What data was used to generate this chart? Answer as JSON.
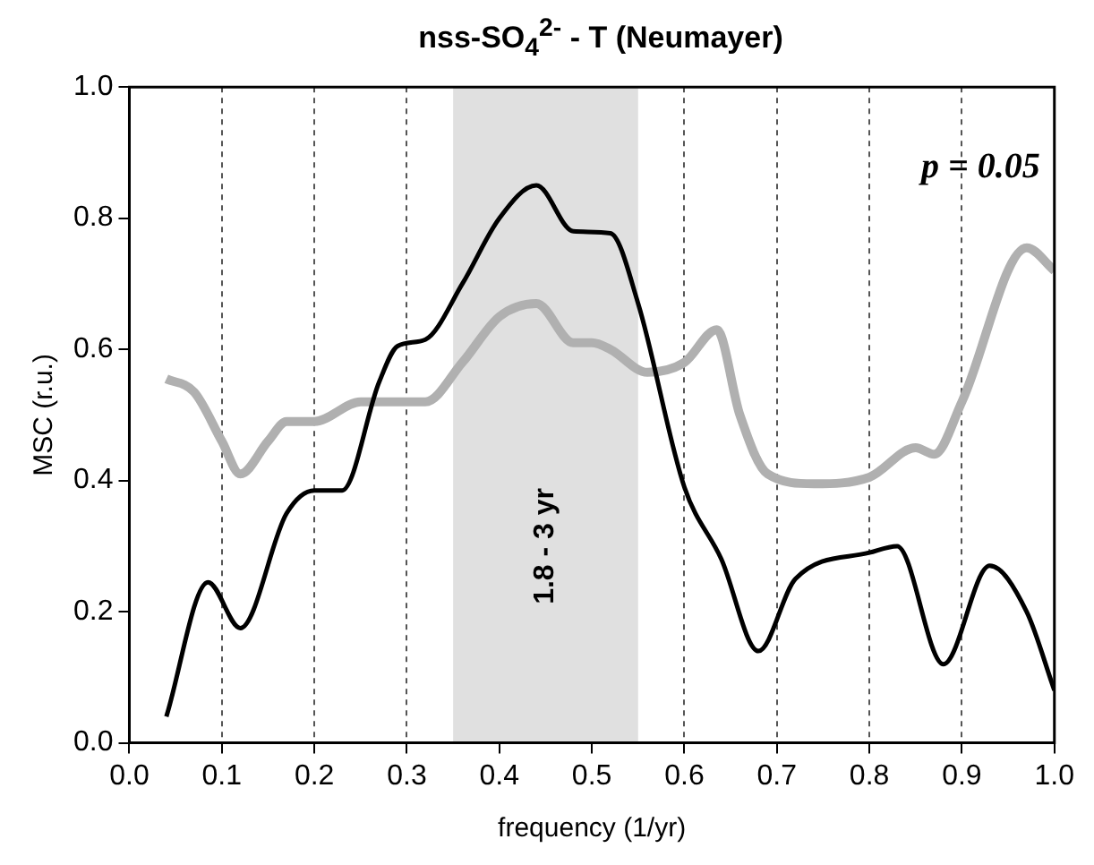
{
  "chart_data": {
    "type": "line",
    "title": "nss-SO$_{4}$$^{2-}$ - T (Neumayer)",
    "xlabel": "frequency (1/yr)",
    "ylabel": "MSC (r.u.)",
    "series": [
      {
        "color": "#000000",
        "x": [
          0.04,
          0.085,
          0.12,
          0.17,
          0.2,
          0.23,
          0.27,
          0.29,
          0.32,
          0.36,
          0.4,
          0.44,
          0.48,
          0.52,
          0.55,
          0.6,
          0.64,
          0.68,
          0.72,
          0.8,
          0.83,
          0.88,
          0.93,
          0.97,
          1.0
        ],
        "values": [
          0.04,
          0.245,
          0.175,
          0.35,
          0.385,
          0.385,
          0.55,
          0.605,
          0.615,
          0.7,
          0.8,
          0.85,
          0.78,
          0.777,
          0.67,
          0.39,
          0.28,
          0.14,
          0.25,
          0.29,
          0.3,
          0.12,
          0.27,
          0.2,
          0.08
        ]
      },
      {
        "color": "#b0b0b0",
        "x": [
          0.04,
          0.07,
          0.1,
          0.12,
          0.15,
          0.17,
          0.2,
          0.25,
          0.32,
          0.36,
          0.4,
          0.44,
          0.48,
          0.5,
          0.52,
          0.56,
          0.6,
          0.635,
          0.66,
          0.69,
          0.74,
          0.8,
          0.85,
          0.87,
          0.9,
          0.97,
          1.0
        ],
        "values": [
          0.555,
          0.535,
          0.46,
          0.41,
          0.46,
          0.49,
          0.49,
          0.52,
          0.52,
          0.58,
          0.65,
          0.67,
          0.61,
          0.61,
          0.6,
          0.565,
          0.58,
          0.63,
          0.5,
          0.41,
          0.395,
          0.405,
          0.45,
          0.44,
          0.52,
          0.755,
          0.72
        ]
      }
    ],
    "xlim": [
      0,
      1
    ],
    "xticks": [
      {
        "value": 0,
        "label": "0.0"
      },
      0.1,
      0.2,
      0.3,
      0.4,
      0.5,
      0.6,
      0.7,
      0.8,
      0.9,
      {
        "value": 1,
        "label": "1.0"
      }
    ],
    "ylim": [
      0,
      1
    ],
    "yticks": [
      {
        "value": 0,
        "label": "0.0"
      },
      0.2,
      0.4,
      0.6,
      0.8,
      {
        "value": 1,
        "label": "1.0"
      }
    ],
    "bands": [
      {
        "axis": "x",
        "from": 0.35,
        "to": 0.55,
        "label": "1.8 - 3 yr",
        "color": "#e0e0e0"
      }
    ],
    "annotations": [
      "p = 0.05"
    ],
    "grid": "x",
    "legend": false,
    "marker": "none",
    "line_style": "solid"
  }
}
